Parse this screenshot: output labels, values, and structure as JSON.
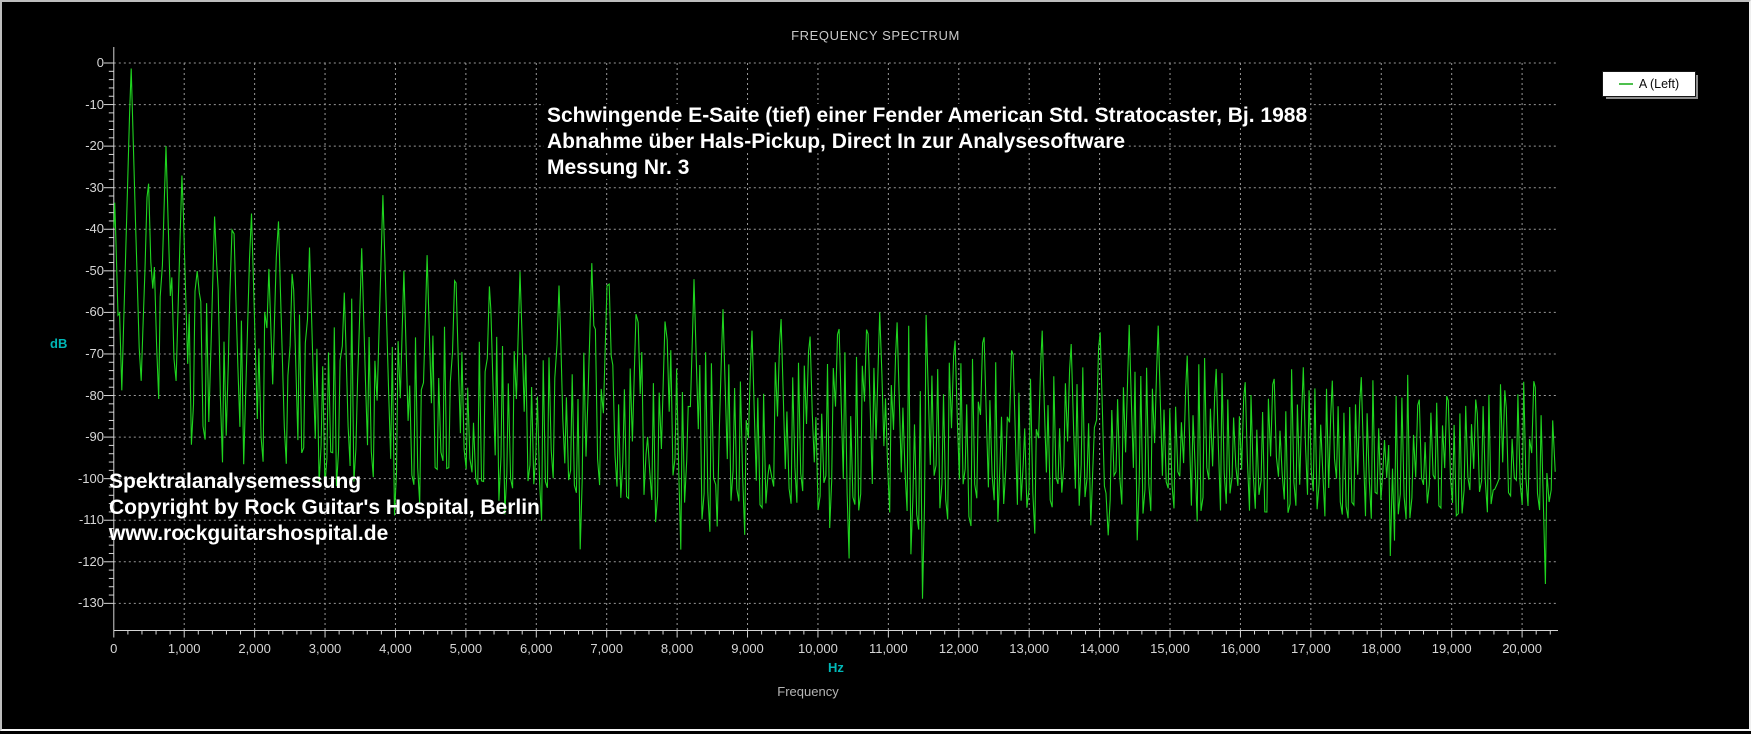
{
  "title": "FREQUENCY SPECTRUM",
  "legend": {
    "series_label": "A (Left)",
    "swatch_color": "#4ec04e"
  },
  "annotations": {
    "top_lines": [
      "Schwingende E-Saite (tief) einer Fender American Std. Stratocaster, Bj. 1988",
      "Abnahme über Hals-Pickup, Direct In zur Analysesoftware",
      "Messung Nr. 3"
    ],
    "bottom_lines": [
      "Spektralanalysemessung",
      "Copyright by Rock Guitar's Hospital, Berlin",
      "www.rockguitarshospital.de"
    ]
  },
  "axes": {
    "y_unit_label": "dB",
    "x_unit_label": "Hz",
    "x_axis_title": "Frequency",
    "unit_color": "#00b7b7",
    "y_tick_labels": [
      "0",
      "-10",
      "-20",
      "-30",
      "-40",
      "-50",
      "-60",
      "-70",
      "-80",
      "-90",
      "-100",
      "-110",
      "-120",
      "-130"
    ],
    "x_tick_labels": [
      "0",
      "1,000",
      "2,000",
      "3,000",
      "4,000",
      "5,000",
      "6,000",
      "7,000",
      "8,000",
      "9,000",
      "10,000",
      "11,000",
      "12,000",
      "13,000",
      "14,000",
      "15,000",
      "16,000",
      "17,000",
      "18,000",
      "19,000",
      "20,000"
    ]
  },
  "chart_data": {
    "type": "line",
    "title": "FREQUENCY SPECTRUM",
    "series": [
      {
        "name": "A (Left)",
        "color": "#1fd41f"
      }
    ],
    "line_color": "#1fd41f",
    "grid_color": "#bfbfbf",
    "xlabel": "Frequency",
    "x_unit": "Hz",
    "ylabel": "dB",
    "xlim": [
      0,
      20470
    ],
    "ylim": [
      -136,
      0
    ],
    "x_tick_values": [
      0,
      1000,
      2000,
      3000,
      4000,
      5000,
      6000,
      7000,
      8000,
      9000,
      10000,
      11000,
      12000,
      13000,
      14000,
      15000,
      16000,
      17000,
      18000,
      19000,
      20000
    ],
    "y_tick_values": [
      0,
      -10,
      -20,
      -30,
      -40,
      -50,
      -60,
      -70,
      -80,
      -90,
      -100,
      -110,
      -120,
      -130
    ],
    "x_minor_step_hz": 200,
    "y_minor_step_db": 2,
    "grid": true,
    "legend_position": "top-right",
    "harmonic_spacing_hz": 82.4,
    "seed": 1988,
    "main_peaks": [
      [
        14,
        -33
      ],
      [
        82,
        -60
      ],
      [
        164,
        -52
      ],
      [
        245,
        0
      ],
      [
        330,
        -50
      ],
      [
        486,
        -24
      ],
      [
        570,
        -45
      ],
      [
        740,
        -19
      ],
      [
        820,
        -50
      ],
      [
        970,
        -25
      ],
      [
        1195,
        -44
      ],
      [
        1437,
        -34
      ],
      [
        1693,
        -32
      ],
      [
        1950,
        -33
      ],
      [
        2200,
        -48
      ],
      [
        2330,
        -33
      ],
      [
        2540,
        -46
      ],
      [
        2780,
        -44
      ],
      [
        3270,
        -53
      ],
      [
        3520,
        -44
      ],
      [
        3823,
        -31
      ],
      [
        4120,
        -50
      ],
      [
        4450,
        -46
      ],
      [
        4850,
        -46
      ],
      [
        5340,
        -50
      ],
      [
        5770,
        -49
      ],
      [
        6320,
        -52
      ],
      [
        6790,
        -47
      ],
      [
        7020,
        -44
      ],
      [
        7430,
        -52
      ],
      [
        7840,
        -55
      ],
      [
        8240,
        -52
      ],
      [
        8650,
        -58
      ],
      [
        9060,
        -62
      ],
      [
        9470,
        -58
      ],
      [
        9880,
        -61
      ],
      [
        10290,
        -58
      ],
      [
        10700,
        -58
      ],
      [
        10880,
        -58
      ],
      [
        11120,
        -60
      ],
      [
        11530,
        -57
      ],
      [
        11940,
        -62
      ],
      [
        12350,
        -60
      ],
      [
        12760,
        -63
      ],
      [
        13180,
        -62
      ],
      [
        13590,
        -64
      ],
      [
        14000,
        -60
      ],
      [
        14420,
        -63
      ],
      [
        14830,
        -62
      ],
      [
        15240,
        -68
      ],
      [
        15650,
        -70
      ],
      [
        16060,
        -72
      ],
      [
        16470,
        -70
      ],
      [
        16890,
        -72
      ],
      [
        17300,
        -74
      ],
      [
        17710,
        -72
      ],
      [
        18120,
        -74
      ],
      [
        18530,
        -75
      ],
      [
        18940,
        -74
      ],
      [
        19350,
        -76
      ],
      [
        19760,
        -75
      ],
      [
        20170,
        -74
      ]
    ],
    "deep_dips": [
      [
        5130,
        -112
      ],
      [
        6620,
        -121
      ],
      [
        7600,
        -113
      ],
      [
        8570,
        -112
      ],
      [
        9300,
        -110
      ],
      [
        11490,
        -135
      ],
      [
        13080,
        -114
      ],
      [
        14080,
        -116
      ],
      [
        15860,
        -113
      ],
      [
        16700,
        -112
      ],
      [
        18130,
        -121
      ],
      [
        19600,
        -116
      ],
      [
        20330,
        -126
      ]
    ],
    "noise_floor": [
      [
        0,
        -72
      ],
      [
        245,
        -78
      ],
      [
        500,
        -80
      ],
      [
        800,
        -84
      ],
      [
        1000,
        -88
      ],
      [
        1500,
        -92
      ],
      [
        2000,
        -94
      ],
      [
        3000,
        -96
      ],
      [
        4000,
        -97
      ],
      [
        5000,
        -98
      ],
      [
        6000,
        -99
      ],
      [
        7000,
        -99
      ],
      [
        8000,
        -100
      ],
      [
        9000,
        -101
      ],
      [
        10000,
        -102
      ],
      [
        11000,
        -103
      ],
      [
        12000,
        -102
      ],
      [
        13000,
        -102
      ],
      [
        14000,
        -102
      ],
      [
        15000,
        -103
      ],
      [
        16000,
        -103
      ],
      [
        17000,
        -104
      ],
      [
        18000,
        -104
      ],
      [
        19000,
        -104
      ],
      [
        20470,
        -102
      ]
    ],
    "peak_envelope": [
      [
        82,
        -58
      ],
      [
        500,
        -58
      ],
      [
        1000,
        -60
      ],
      [
        1500,
        -62
      ],
      [
        2000,
        -66
      ],
      [
        3000,
        -70
      ],
      [
        4000,
        -70
      ],
      [
        5000,
        -72
      ],
      [
        6000,
        -73
      ],
      [
        7000,
        -74
      ],
      [
        8000,
        -76
      ],
      [
        9000,
        -78
      ],
      [
        10000,
        -78
      ],
      [
        11000,
        -79
      ],
      [
        12000,
        -80
      ],
      [
        13000,
        -80
      ],
      [
        14000,
        -80
      ],
      [
        15000,
        -81
      ],
      [
        16000,
        -82
      ],
      [
        17000,
        -83
      ],
      [
        18000,
        -84
      ],
      [
        19000,
        -84
      ],
      [
        20470,
        -84
      ]
    ]
  }
}
